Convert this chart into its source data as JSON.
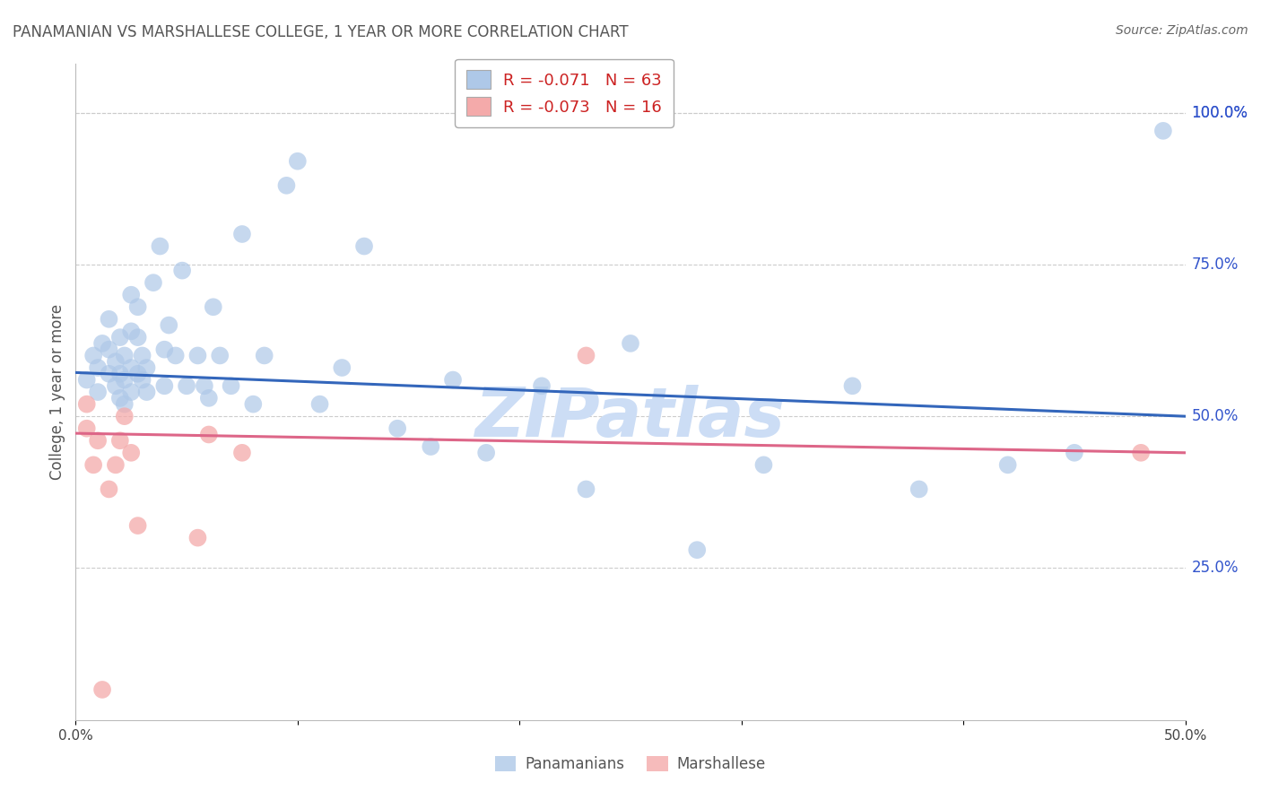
{
  "title": "PANAMANIAN VS MARSHALLESE COLLEGE, 1 YEAR OR MORE CORRELATION CHART",
  "source": "Source: ZipAtlas.com",
  "ylabel": "College, 1 year or more",
  "right_yticks": [
    "100.0%",
    "75.0%",
    "50.0%",
    "25.0%"
  ],
  "right_ytick_vals": [
    1.0,
    0.75,
    0.5,
    0.25
  ],
  "xlim": [
    0.0,
    0.5
  ],
  "ylim": [
    0.0,
    1.08
  ],
  "legend_blue_r": "-0.071",
  "legend_blue_n": "63",
  "legend_pink_r": "-0.073",
  "legend_pink_n": "16",
  "watermark": "ZIPatlas",
  "blue_scatter_x": [
    0.005,
    0.008,
    0.01,
    0.01,
    0.012,
    0.015,
    0.015,
    0.015,
    0.018,
    0.018,
    0.02,
    0.02,
    0.02,
    0.022,
    0.022,
    0.022,
    0.025,
    0.025,
    0.025,
    0.025,
    0.028,
    0.028,
    0.028,
    0.03,
    0.03,
    0.032,
    0.032,
    0.035,
    0.038,
    0.04,
    0.04,
    0.042,
    0.045,
    0.048,
    0.05,
    0.055,
    0.058,
    0.06,
    0.062,
    0.065,
    0.07,
    0.075,
    0.08,
    0.085,
    0.095,
    0.1,
    0.11,
    0.12,
    0.13,
    0.145,
    0.16,
    0.17,
    0.185,
    0.21,
    0.23,
    0.25,
    0.28,
    0.31,
    0.35,
    0.38,
    0.42,
    0.45,
    0.49
  ],
  "blue_scatter_y": [
    0.56,
    0.6,
    0.54,
    0.58,
    0.62,
    0.57,
    0.61,
    0.66,
    0.55,
    0.59,
    0.53,
    0.57,
    0.63,
    0.52,
    0.56,
    0.6,
    0.54,
    0.58,
    0.64,
    0.7,
    0.57,
    0.63,
    0.68,
    0.56,
    0.6,
    0.54,
    0.58,
    0.72,
    0.78,
    0.55,
    0.61,
    0.65,
    0.6,
    0.74,
    0.55,
    0.6,
    0.55,
    0.53,
    0.68,
    0.6,
    0.55,
    0.8,
    0.52,
    0.6,
    0.88,
    0.92,
    0.52,
    0.58,
    0.78,
    0.48,
    0.45,
    0.56,
    0.44,
    0.55,
    0.38,
    0.62,
    0.28,
    0.42,
    0.55,
    0.38,
    0.42,
    0.44,
    0.97
  ],
  "pink_scatter_x": [
    0.005,
    0.005,
    0.008,
    0.01,
    0.012,
    0.015,
    0.018,
    0.02,
    0.022,
    0.025,
    0.028,
    0.055,
    0.06,
    0.075,
    0.23,
    0.48
  ],
  "pink_scatter_y": [
    0.48,
    0.52,
    0.42,
    0.46,
    0.05,
    0.38,
    0.42,
    0.46,
    0.5,
    0.44,
    0.32,
    0.3,
    0.47,
    0.44,
    0.6,
    0.44
  ],
  "blue_line_x": [
    0.0,
    0.5
  ],
  "blue_line_y": [
    0.572,
    0.5
  ],
  "pink_line_x": [
    0.0,
    0.5
  ],
  "pink_line_y": [
    0.472,
    0.44
  ],
  "blue_color": "#aec8e8",
  "blue_line_color": "#3366bb",
  "pink_color": "#f4aaaa",
  "pink_line_color": "#dd6688",
  "grid_color": "#cccccc",
  "bg_color": "#ffffff",
  "title_color": "#555555",
  "right_axis_color": "#3355cc",
  "watermark_color": "#ccddf5",
  "legend_text_color": "#cc2222",
  "bottom_legend_color": "#555555"
}
